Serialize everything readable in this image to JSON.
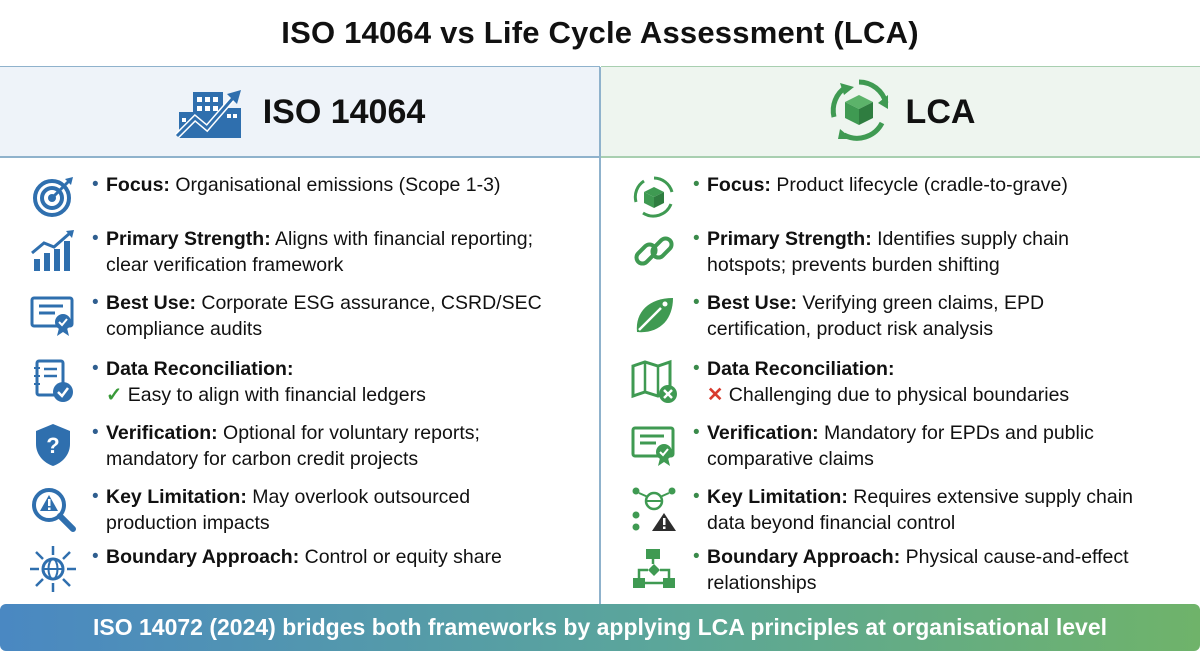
{
  "title": "ISO 14064 vs Life Cycle Assessment (LCA)",
  "colors": {
    "blue": "#2f6fae",
    "green": "#3f9a52",
    "footer_start": "#4a88c2",
    "footer_end": "#6fb36a"
  },
  "left": {
    "heading": "ISO 14064",
    "heading_icon": "building-growth-icon",
    "rows": [
      {
        "icon": "target-icon",
        "label": "Focus:",
        "text": " Organisational emissions (Scope 1-3)",
        "text2": ""
      },
      {
        "icon": "bar-chart-growth-icon",
        "label": "Primary Strength:",
        "text": " Aligns with financial reporting;",
        "text2": "clear verification framework"
      },
      {
        "icon": "certificate-icon",
        "label": "Best Use:",
        "text": " Corporate ESG assurance, CSRD/SEC",
        "text2": "compliance audits"
      },
      {
        "icon": "ledger-check-icon",
        "label": "Data Reconciliation:",
        "text": "",
        "mark": "✓",
        "text2": " Easy to align with financial ledgers"
      },
      {
        "icon": "shield-question-icon",
        "label": "Verification:",
        "text": " Optional for voluntary reports;",
        "text2": "mandatory for carbon credit projects"
      },
      {
        "icon": "magnifier-warning-icon",
        "label": "Key Limitation:",
        "text": " May overlook outsourced",
        "text2": "production impacts"
      },
      {
        "icon": "globe-arrows-icon",
        "label": "Boundary Approach:",
        "text": " Control or equity share",
        "text2": ""
      }
    ]
  },
  "right": {
    "heading": "LCA",
    "heading_icon": "recycle-box-icon",
    "rows": [
      {
        "icon": "cycle-box-icon",
        "label": "Focus:",
        "text": " Product lifecycle (cradle-to-grave)",
        "text2": ""
      },
      {
        "icon": "chain-link-icon",
        "label": "Primary Strength:",
        "text": " Identifies supply chain",
        "text2": "hotspots; prevents burden shifting"
      },
      {
        "icon": "leaf-tag-icon",
        "label": "Best Use:",
        "text": " Verifying green claims, EPD",
        "text2": "certification, product risk analysis"
      },
      {
        "icon": "map-cross-icon",
        "label": "Data Reconciliation:",
        "text": "",
        "mark": "✕",
        "text2": " Challenging due to physical boundaries"
      },
      {
        "icon": "certificate-icon",
        "label": "Verification:",
        "text": " Mandatory for EPDs and public",
        "text2": "comparative claims"
      },
      {
        "icon": "network-warning-icon",
        "label": "Key Limitation:",
        "text": " Requires extensive supply chain",
        "text2": "data beyond financial control"
      },
      {
        "icon": "flowchart-icon",
        "label": "Boundary Approach:",
        "text": " Physical cause-and-effect",
        "text2": "relationships"
      }
    ]
  },
  "footer": "ISO 14072 (2024) bridges both frameworks by applying LCA principles at organisational level"
}
